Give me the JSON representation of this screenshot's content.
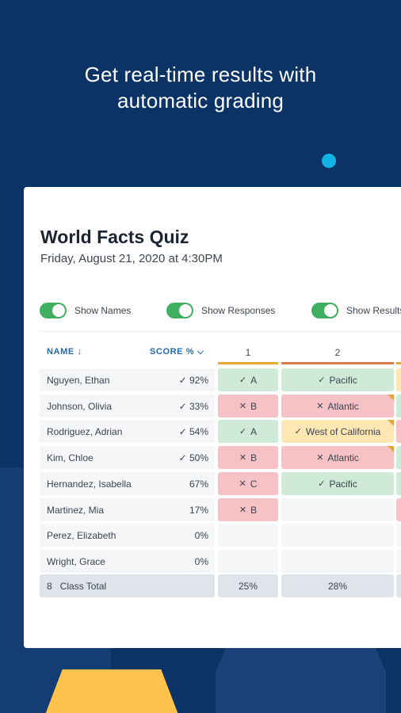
{
  "headline": {
    "line1": "Get real-time results with",
    "line2": "automatic grading"
  },
  "quiz": {
    "title": "World Facts Quiz",
    "date": "Friday, August 21, 2020 at 4:30PM"
  },
  "toggles": [
    {
      "label": "Show Names",
      "on": true
    },
    {
      "label": "Show Responses",
      "on": true
    },
    {
      "label": "Show Results",
      "on": true
    }
  ],
  "table": {
    "name_header": "NAME ↓",
    "score_header": "SCORE % ⌵",
    "questions": [
      "1",
      "2"
    ],
    "question_colors": [
      "#e8a93b",
      "#e07a4a"
    ],
    "rows": [
      {
        "name": "Nguyen, Ethan",
        "score": "✓ 92%",
        "q1": {
          "mark": "✓",
          "text": "A",
          "status": "correct"
        },
        "q2": {
          "mark": "✓",
          "text": "Pacific",
          "status": "correct"
        }
      },
      {
        "name": "Johnson, Olivia",
        "score": "✓ 33%",
        "q1": {
          "mark": "✕",
          "text": "B",
          "status": "wrong"
        },
        "q2": {
          "mark": "✕",
          "text": "Atlantic",
          "status": "wrong"
        }
      },
      {
        "name": "Rodriguez, Adrian",
        "score": "✓ 54%",
        "q1": {
          "mark": "✓",
          "text": "A",
          "status": "correct"
        },
        "q2": {
          "mark": "✓",
          "text": "West of California",
          "status": "partial"
        }
      },
      {
        "name": "Kim, Chloe",
        "score": "✓ 50%",
        "q1": {
          "mark": "✕",
          "text": "B",
          "status": "wrong"
        },
        "q2": {
          "mark": "✕",
          "text": "Atlantic",
          "status": "wrong"
        }
      },
      {
        "name": "Hernandez, Isabella",
        "score": "67%",
        "q1": {
          "mark": "✕",
          "text": "C",
          "status": "wrong"
        },
        "q2": {
          "mark": "✓",
          "text": "Pacific",
          "status": "correct"
        }
      },
      {
        "name": "Martinez, Mia",
        "score": "17%",
        "q1": {
          "mark": "✕",
          "text": "B",
          "status": "wrong"
        },
        "q2": {
          "mark": "",
          "text": "",
          "status": "empty"
        }
      },
      {
        "name": "Perez, Elizabeth",
        "score": "0%",
        "q1": {
          "mark": "",
          "text": "",
          "status": "empty"
        },
        "q2": {
          "mark": "",
          "text": "",
          "status": "empty"
        }
      },
      {
        "name": "Wright, Grace",
        "score": "0%",
        "q1": {
          "mark": "",
          "text": "",
          "status": "empty"
        },
        "q2": {
          "mark": "",
          "text": "",
          "status": "empty"
        }
      }
    ],
    "total": {
      "count": "8",
      "label": "Class Total",
      "q1": "25%",
      "q2": "28%"
    }
  }
}
